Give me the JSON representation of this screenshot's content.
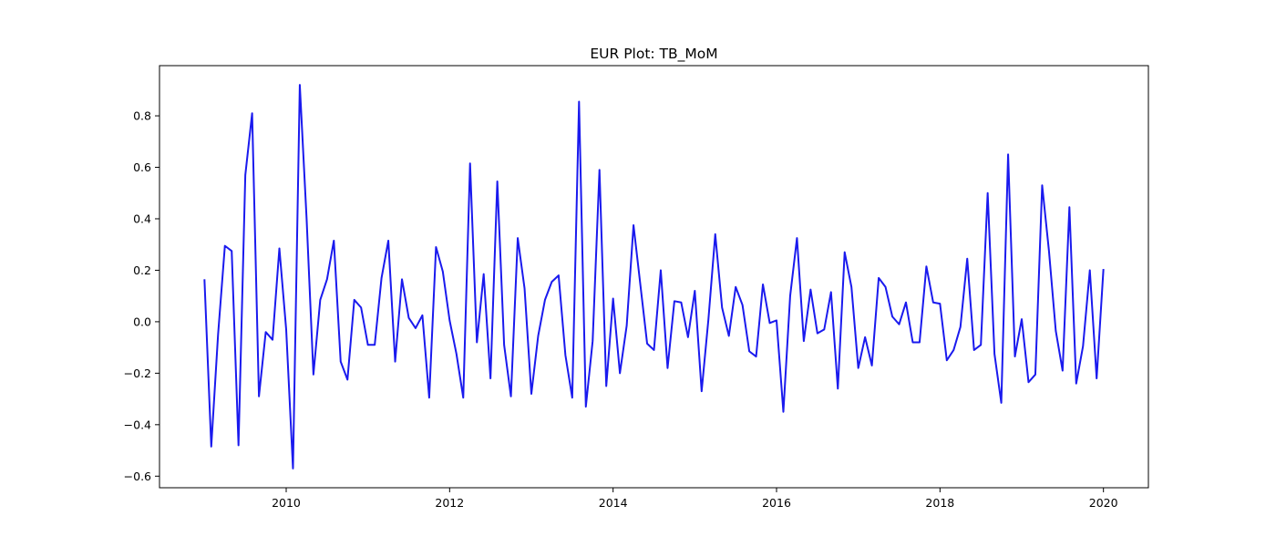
{
  "chart_data": {
    "type": "line",
    "title": "EUR Plot: TB_MoM",
    "xlabel": "",
    "ylabel": "",
    "xlim": [
      2008.45,
      2020.55
    ],
    "ylim": [
      -0.645,
      0.995
    ],
    "grid": false,
    "x_ticks": [
      2010,
      2012,
      2014,
      2016,
      2018,
      2020
    ],
    "x_tick_labels": [
      "2010",
      "2012",
      "2014",
      "2016",
      "2018",
      "2020"
    ],
    "y_ticks": [
      -0.6,
      -0.4,
      -0.2,
      0.0,
      0.2,
      0.4,
      0.6,
      0.8
    ],
    "y_tick_labels": [
      "−0.6",
      "−0.4",
      "−0.2",
      "0.0",
      "0.2",
      "0.4",
      "0.6",
      "0.8"
    ],
    "series": [
      {
        "color": "#1a1aee",
        "x_start": 2009.0,
        "x_step": 0.0833333,
        "values": [
          0.165,
          -0.485,
          -0.05,
          0.295,
          0.275,
          -0.48,
          0.57,
          0.81,
          -0.29,
          -0.04,
          -0.07,
          0.285,
          -0.03,
          -0.57,
          0.92,
          0.4,
          -0.205,
          0.085,
          0.165,
          0.315,
          -0.155,
          -0.225,
          0.085,
          0.055,
          -0.09,
          -0.09,
          0.17,
          0.315,
          -0.155,
          0.165,
          0.015,
          -0.025,
          0.025,
          -0.295,
          0.29,
          0.195,
          0.005,
          -0.125,
          -0.295,
          0.615,
          -0.08,
          0.185,
          -0.22,
          0.545,
          -0.09,
          -0.29,
          0.325,
          0.13,
          -0.28,
          -0.055,
          0.085,
          0.155,
          0.18,
          -0.13,
          -0.295,
          0.855,
          -0.33,
          -0.075,
          0.59,
          -0.25,
          0.09,
          -0.2,
          -0.015,
          0.375,
          0.145,
          -0.085,
          -0.11,
          0.2,
          -0.18,
          0.08,
          0.075,
          -0.06,
          0.12,
          -0.27,
          0.01,
          0.34,
          0.055,
          -0.055,
          0.135,
          0.065,
          -0.115,
          -0.135,
          0.145,
          -0.005,
          0.005,
          -0.35,
          0.1,
          0.325,
          -0.075,
          0.125,
          -0.045,
          -0.03,
          0.115,
          -0.26,
          0.27,
          0.135,
          -0.18,
          -0.06,
          -0.17,
          0.17,
          0.135,
          0.02,
          -0.01,
          0.075,
          -0.08,
          -0.08,
          0.215,
          0.075,
          0.07,
          -0.15,
          -0.11,
          -0.02,
          0.245,
          -0.11,
          -0.09,
          0.5,
          -0.125,
          -0.315,
          0.65,
          -0.135,
          0.01,
          -0.235,
          -0.205,
          0.53,
          0.275,
          -0.035,
          -0.19,
          0.445,
          -0.24,
          -0.095,
          0.2,
          -0.22,
          0.205
        ]
      }
    ]
  }
}
